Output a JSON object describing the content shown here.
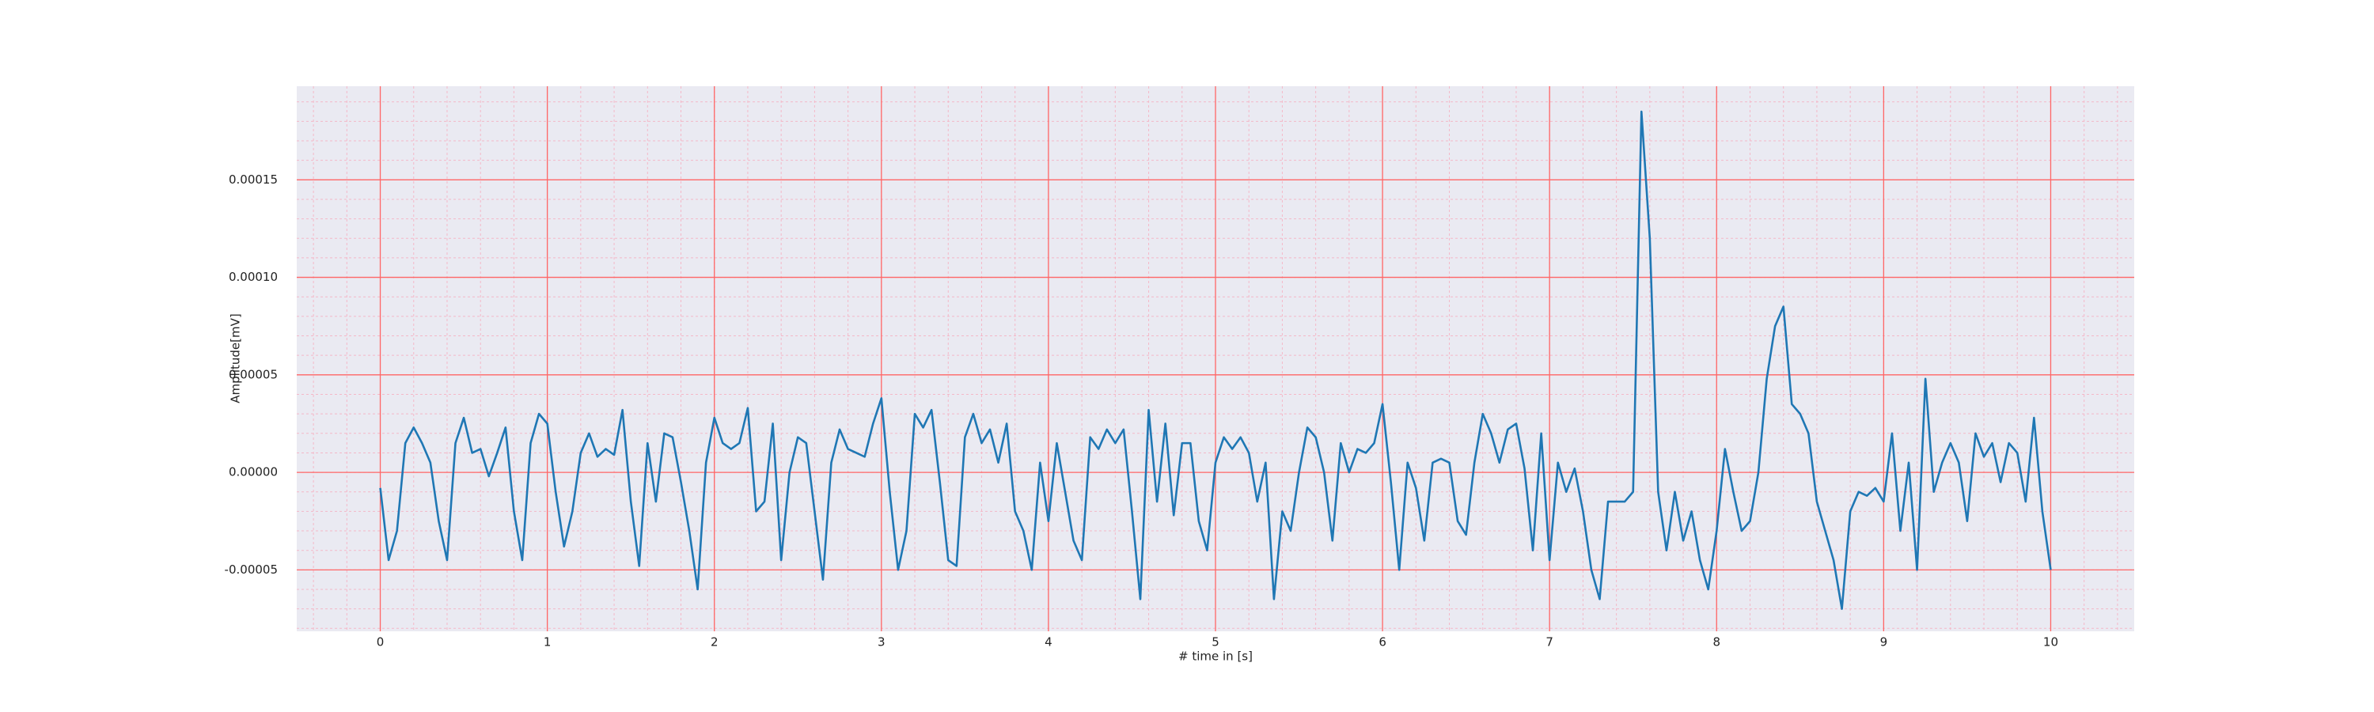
{
  "chart_data": {
    "type": "line",
    "xlabel": "# time in [s]",
    "ylabel": "Amplitude[mV]",
    "xlim": [
      -0.5,
      10.5
    ],
    "ylim": [
      -8.15e-05,
      0.000198
    ],
    "xticks": [
      0,
      1,
      2,
      3,
      4,
      5,
      6,
      7,
      8,
      9,
      10
    ],
    "yticks": [
      {
        "value": -5e-05,
        "label": "-0.00005"
      },
      {
        "value": 0,
        "label": "0.00000"
      },
      {
        "value": 5e-05,
        "label": "0.00005"
      },
      {
        "value": 0.0001,
        "label": "0.00010"
      },
      {
        "value": 0.00015,
        "label": "0.00015"
      }
    ],
    "grid": true,
    "grid_color": "#ff6666",
    "minor_grid": {
      "x": 0.2,
      "y": 1e-05
    },
    "minor_grid_color": "#f4b8c8",
    "background": "#eaeaf2",
    "x": [
      0,
      0.05,
      0.1,
      0.15,
      0.2,
      0.25,
      0.3,
      0.35,
      0.4,
      0.45,
      0.5,
      0.55,
      0.6,
      0.65,
      0.7,
      0.75,
      0.8,
      0.85,
      0.9,
      0.95,
      1,
      1.05,
      1.1,
      1.15,
      1.2,
      1.25,
      1.3,
      1.35,
      1.4,
      1.45,
      1.5,
      1.55,
      1.6,
      1.65,
      1.7,
      1.75,
      1.8,
      1.85,
      1.9,
      1.95,
      2,
      2.05,
      2.1,
      2.15,
      2.2,
      2.25,
      2.3,
      2.35,
      2.4,
      2.45,
      2.5,
      2.55,
      2.6,
      2.65,
      2.7,
      2.75,
      2.8,
      2.85,
      2.9,
      2.95,
      3,
      3.05,
      3.1,
      3.15,
      3.2,
      3.25,
      3.3,
      3.35,
      3.4,
      3.45,
      3.5,
      3.55,
      3.6,
      3.65,
      3.7,
      3.75,
      3.8,
      3.85,
      3.9,
      3.95,
      4,
      4.05,
      4.1,
      4.15,
      4.2,
      4.25,
      4.3,
      4.35,
      4.4,
      4.45,
      4.5,
      4.55,
      4.6,
      4.65,
      4.7,
      4.75,
      4.8,
      4.85,
      4.9,
      4.95,
      5,
      5.05,
      5.1,
      5.15,
      5.2,
      5.25,
      5.3,
      5.35,
      5.4,
      5.45,
      5.5,
      5.55,
      5.6,
      5.65,
      5.7,
      5.75,
      5.8,
      5.85,
      5.9,
      5.95,
      6,
      6.05,
      6.1,
      6.15,
      6.2,
      6.25,
      6.3,
      6.35,
      6.4,
      6.45,
      6.5,
      6.55,
      6.6,
      6.65,
      6.7,
      6.75,
      6.8,
      6.85,
      6.9,
      6.95,
      7,
      7.05,
      7.1,
      7.15,
      7.2,
      7.25,
      7.3,
      7.35,
      7.4,
      7.45,
      7.5,
      7.55,
      7.6,
      7.65,
      7.7,
      7.75,
      7.8,
      7.85,
      7.9,
      7.95,
      8,
      8.05,
      8.1,
      8.15,
      8.2,
      8.25,
      8.3,
      8.35,
      8.4,
      8.45,
      8.5,
      8.55,
      8.6,
      8.65,
      8.7,
      8.75,
      8.8,
      8.85,
      8.9,
      8.95,
      9,
      9.05,
      9.1,
      9.15,
      9.2,
      9.25,
      9.3,
      9.35,
      9.4,
      9.45,
      9.5,
      9.55,
      9.6,
      9.65,
      9.7,
      9.75,
      9.8,
      9.85,
      9.9,
      9.95,
      10
    ],
    "series": [
      {
        "color": "#1f77b4",
        "values": [
          -8e-06,
          -4.5e-05,
          -3e-05,
          1.5e-05,
          2.3e-05,
          1.5e-05,
          5e-06,
          -2.5e-05,
          -4.5e-05,
          1.5e-05,
          2.8e-05,
          1e-05,
          1.2e-05,
          -2e-06,
          1e-05,
          2.3e-05,
          -2e-05,
          -4.5e-05,
          1.5e-05,
          3e-05,
          2.5e-05,
          -1e-05,
          -3.8e-05,
          -2e-05,
          1e-05,
          2e-05,
          8e-06,
          1.2e-05,
          9e-06,
          3.2e-05,
          -1.5e-05,
          -4.8e-05,
          1.5e-05,
          -1.5e-05,
          2e-05,
          1.8e-05,
          -5e-06,
          -3e-05,
          -6e-05,
          5e-06,
          2.8e-05,
          1.5e-05,
          1.2e-05,
          1.5e-05,
          3.3e-05,
          -2e-05,
          -1.5e-05,
          2.5e-05,
          -4.5e-05,
          0,
          1.8e-05,
          1.5e-05,
          -2e-05,
          -5.5e-05,
          5e-06,
          2.2e-05,
          1.2e-05,
          1e-05,
          8e-06,
          2.5e-05,
          3.8e-05,
          -1e-05,
          -5e-05,
          -3e-05,
          3e-05,
          2.3e-05,
          3.2e-05,
          -5e-06,
          -4.5e-05,
          -4.8e-05,
          1.8e-05,
          3e-05,
          1.5e-05,
          2.2e-05,
          5e-06,
          2.5e-05,
          -2e-05,
          -3e-05,
          -5e-05,
          5e-06,
          -2.5e-05,
          1.5e-05,
          -1e-05,
          -3.5e-05,
          -4.5e-05,
          1.8e-05,
          1.2e-05,
          2.2e-05,
          1.5e-05,
          2.2e-05,
          -2e-05,
          -6.5e-05,
          3.2e-05,
          -1.5e-05,
          2.5e-05,
          -2.2e-05,
          1.5e-05,
          1.5e-05,
          -2.5e-05,
          -4e-05,
          5e-06,
          1.8e-05,
          1.2e-05,
          1.8e-05,
          1e-05,
          -1.5e-05,
          5e-06,
          -6.5e-05,
          -2e-05,
          -3e-05,
          0,
          2.3e-05,
          1.8e-05,
          0,
          -3.5e-05,
          1.5e-05,
          0,
          1.2e-05,
          1e-05,
          1.5e-05,
          3.5e-05,
          -5e-06,
          -5e-05,
          5e-06,
          -8e-06,
          -3.5e-05,
          5e-06,
          7e-06,
          5e-06,
          -2.5e-05,
          -3.2e-05,
          5e-06,
          3e-05,
          2e-05,
          5e-06,
          2.2e-05,
          2.5e-05,
          2e-06,
          -4e-05,
          2e-05,
          -4.5e-05,
          5e-06,
          -1e-05,
          2e-06,
          -2e-05,
          -5e-05,
          -6.5e-05,
          -1.5e-05,
          -1.5e-05,
          -1.5e-05,
          -1e-05,
          0.000185,
          0.00012,
          -1e-05,
          -4e-05,
          -1e-05,
          -3.5e-05,
          -2e-05,
          -4.5e-05,
          -6e-05,
          -3e-05,
          1.2e-05,
          -1e-05,
          -3e-05,
          -2.5e-05,
          0,
          4.8e-05,
          7.5e-05,
          8.5e-05,
          3.5e-05,
          3e-05,
          2e-05,
          -1.5e-05,
          -3e-05,
          -4.5e-05,
          -7e-05,
          -2e-05,
          -1e-05,
          -1.2e-05,
          -8e-06,
          -1.5e-05,
          2e-05,
          -3e-05,
          5e-06,
          -5e-05,
          4.8e-05,
          -1e-05,
          5e-06,
          1.5e-05,
          5e-06,
          -2.5e-05,
          2e-05,
          8e-06,
          1.5e-05,
          -5e-06,
          1.5e-05,
          1e-05,
          -1.5e-05,
          2.8e-05,
          -2e-05,
          -5e-05
        ]
      }
    ]
  }
}
